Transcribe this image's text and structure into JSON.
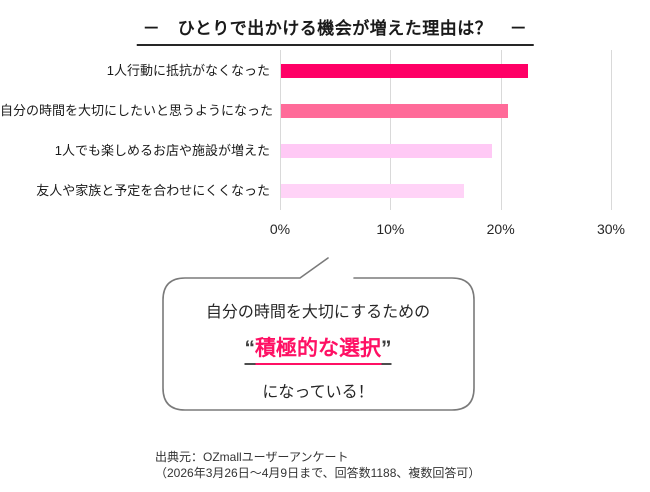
{
  "title": "－　ひとりで出かける機会が増えた理由は？　－",
  "chart_data": {
    "type": "bar",
    "orientation": "horizontal",
    "title": "ひとりで出かける機会が増えた理由は？",
    "categories": [
      "1人行動に抵抗がなくなった",
      "自分の時間を大切にしたいと思うようになった",
      "1人でも楽しめるお店や施設が増えた",
      "友人や家族と予定を合わせにくくなった"
    ],
    "values": [
      22.4,
      20.6,
      19.1,
      16.6
    ],
    "bar_colors": [
      "#FF0066",
      "#FF6B99",
      "#FFC9F5",
      "#FFD3F7"
    ],
    "xlim": [
      0,
      30
    ],
    "x_ticks": [
      "0%",
      "10%",
      "20%",
      "30%"
    ],
    "grid": true,
    "grid_color": "#d9d9d9",
    "legend": "none"
  },
  "callout": {
    "line1": "自分の時間を大切にするための",
    "quote_open": "“",
    "highlight": "積極的な選択",
    "quote_close": "”",
    "line3": "になっている！",
    "highlight_color": "#FF1064",
    "border_color": "#7a7a7a"
  },
  "source": {
    "line1": "出典元：OZmallユーザーアンケート",
    "line2": "（2026年3月26日～4月9日まで、回答数1188、複数回答可）"
  }
}
